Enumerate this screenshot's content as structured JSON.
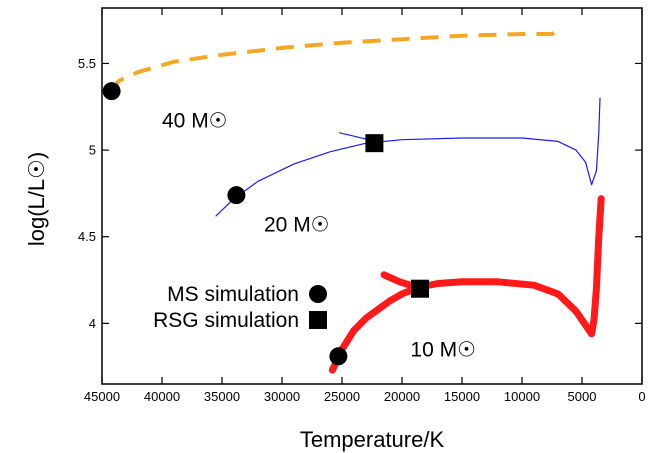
{
  "chart_data": {
    "type": "line",
    "title": "",
    "xlabel": "Temperature/K",
    "ylabel": "log(L/L☉)",
    "xlim": [
      45000,
      0
    ],
    "ylim": [
      3.65,
      5.82
    ],
    "x_reversed": true,
    "x_ticks": [
      45000,
      40000,
      35000,
      30000,
      25000,
      20000,
      15000,
      10000,
      5000,
      0
    ],
    "y_ticks": [
      4,
      4.5,
      5,
      5.5
    ],
    "grid": false,
    "series": [
      {
        "name": "40 M☉",
        "color": "#f5a623",
        "style": "dashed",
        "x": [
          44200,
          43600,
          42000,
          39000,
          35000,
          30000,
          25000,
          20000,
          15000,
          10000,
          7500,
          6800
        ],
        "y": [
          5.34,
          5.4,
          5.45,
          5.51,
          5.55,
          5.59,
          5.62,
          5.64,
          5.66,
          5.67,
          5.67,
          5.69
        ]
      },
      {
        "name": "20 M☉",
        "color": "#1a1aff",
        "style": "solid",
        "x": [
          35500,
          34000,
          32000,
          29000,
          26000,
          23000,
          20000,
          15000,
          10000,
          7000,
          5500,
          4700,
          4200,
          3800,
          3600,
          3500
        ],
        "y": [
          4.62,
          4.72,
          4.82,
          4.92,
          4.99,
          5.04,
          5.06,
          5.07,
          5.07,
          5.05,
          5.0,
          4.93,
          4.8,
          4.88,
          5.1,
          5.3
        ]
      },
      {
        "name": "20 M☉ start",
        "color": "#1a1aff",
        "style": "solid",
        "x": [
          25200,
          24000,
          22800
        ],
        "y": [
          5.1,
          5.08,
          5.06
        ]
      },
      {
        "name": "10 M☉",
        "color": "#ff1a1a",
        "style": "thick",
        "x": [
          25800,
          25000,
          24000,
          23000,
          22000,
          21000,
          20000,
          18500,
          17000,
          15000,
          12000,
          9000,
          7000,
          5500,
          4500,
          4200,
          4000,
          3800,
          3600,
          3400
        ],
        "y": [
          3.73,
          3.85,
          3.96,
          4.03,
          4.08,
          4.13,
          4.17,
          4.21,
          4.23,
          4.24,
          4.24,
          4.22,
          4.17,
          4.07,
          3.97,
          3.94,
          4.02,
          4.2,
          4.5,
          4.72
        ]
      },
      {
        "name": "10 M☉ start",
        "color": "#ff1a1a",
        "style": "thick",
        "x": [
          21500,
          20200,
          18800
        ],
        "y": [
          4.28,
          4.24,
          4.21
        ]
      }
    ],
    "markers": {
      "ms": [
        {
          "x": 44200,
          "y": 5.34
        },
        {
          "x": 33800,
          "y": 4.74
        },
        {
          "x": 25300,
          "y": 3.81
        }
      ],
      "rsg": [
        {
          "x": 22300,
          "y": 5.04
        },
        {
          "x": 18500,
          "y": 4.2
        }
      ]
    },
    "annotations": [
      {
        "text": "40 M☉",
        "x": 40000,
        "y": 5.13
      },
      {
        "text": "20 M☉",
        "x": 31500,
        "y": 4.53
      },
      {
        "text": "10 M☉",
        "x": 19300,
        "y": 3.81
      }
    ],
    "legend": {
      "placement": "bottom-left",
      "entries": [
        {
          "label": "MS simulation",
          "marker": "circle"
        },
        {
          "label": "RSG simulation",
          "marker": "square"
        }
      ]
    }
  }
}
